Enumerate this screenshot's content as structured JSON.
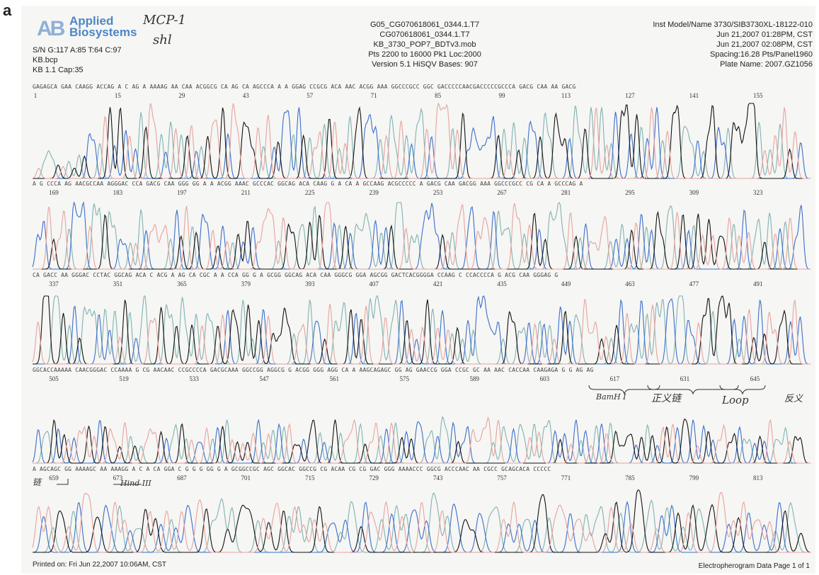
{
  "panel_label": "a",
  "logo": {
    "mark": "AB",
    "line1": "Applied",
    "line2": "Biosystems"
  },
  "handwritten": {
    "top1": "MCP-1",
    "top2": "shl"
  },
  "header": {
    "left": [
      "S/N G:117 A:85 T:64 C:97",
      "KB.bcp",
      "KB 1.1    Cap:35"
    ],
    "center": [
      "G05_CG070618061_0344.1.T7",
      "CG070618061_0344.1.T7",
      "KB_3730_POP7_BDTv3.mob",
      "Pts 2200 to 16000 Pk1 Loc:2000",
      "Version 5.1    HiSQV Bases: 907"
    ],
    "right": [
      "Inst Model/Name 3730/SIB3730XL-18122-010",
      "Jun 21,2007 01:28PM, CST",
      "Jun 21,2007 02:08PM, CST",
      "Spacing:16.28  Pts/Panel1960",
      "Plate Name: 2007.GZ1056"
    ]
  },
  "footer": {
    "left": "Printed on: Fri Jun 22,2007 10:06AM, CST",
    "right": "Electropherogram Data  Page 1 of 1"
  },
  "colors": {
    "A": "#3c8a3a",
    "C": "#3b6fcb",
    "G": "#111111",
    "T": "#e07a78"
  },
  "chart_data": {
    "type": "line",
    "title": "",
    "xlabel": "",
    "ylabel": "",
    "series": [
      {
        "name": "A",
        "color": "#7fb3b0"
      },
      {
        "name": "C",
        "color": "#3b6fcb"
      },
      {
        "name": "G",
        "color": "#111111"
      },
      {
        "name": "T",
        "color": "#e6a39e"
      }
    ],
    "panels": [
      {
        "sequence": "GAGAGCA GAA  CAAGG ACCAG A C  AG  A AAAAG AA CAA  ACGGCG CA  AG  CA AGCCCA A A GGAG  CCGCG  ACA AAC  ACGG AAA GGCCCGCC GGC GACCCCCAACGACCCCCGCCCA  GACG CAA AA GACG",
        "ticks": [
          "1",
          "15",
          "29",
          "43",
          "57",
          "71",
          "85",
          "99",
          "113",
          "127",
          "141",
          "155"
        ]
      },
      {
        "sequence": "A G  CCCA AG AACGCCAA AGGGAC   CCA  GACG CAA GGG GG A  A  ACGG AAAC GCCCAC  GGCAG ACA CAAG  G A CA A GCCAAG ACGCCCCC A  GACG CAA GACGG AAA GGCCCGCC  CG CA A  GCCCAG A",
        "ticks": [
          "169",
          "183",
          "197",
          "211",
          "225",
          "239",
          "253",
          "267",
          "281",
          "295",
          "309",
          "323"
        ]
      },
      {
        "sequence": "CA GACC AA GGGAC   CCTAC  GGCAG ACA C ACG A  AG  CA CGC A  A CCA GG G A GCGG   GGCAG ACA CAA  GGGCG GGA AGCGG  GACTCACGGGGA   CCAAG C CCACCCCA  G ACG CAA GGGAG  G",
        "ticks": [
          "337",
          "351",
          "365",
          "379",
          "393",
          "407",
          "421",
          "435",
          "449",
          "463",
          "477",
          "491"
        ]
      },
      {
        "sequence": "GGCACCAAAAA CAACGGGAC   CCAAAA G CG AACAAC CCGCCCCA  GACGCAAA GGCCGG AGGCG G ACGG GGG AGG CA A AAGCAGAGC GG    AG  GAACCG GGA CCGC GC AA AAC  CACCAA  CAAGAGA  G G AG AG",
        "ticks": [
          "505",
          "519",
          "533",
          "547",
          "561",
          "575",
          "589",
          "603",
          "617",
          "631",
          "645"
        ]
      },
      {
        "sequence": "A AGCAGC    GG AAAAGC  AA AAAGG A C      A   CA  GGA C G G G  GG    G  A GCGGCCGC AGC  GGCAC GGCCG CG    ACAA CG CG GAC GGG AAAACCC GGCG  ACCCAAC  AA CGCC  GCAGCACA CCCCC",
        "ticks": [
          "659",
          "673",
          "687",
          "701",
          "715",
          "729",
          "743",
          "757",
          "771",
          "785",
          "799",
          "813"
        ]
      }
    ]
  },
  "annotations": {
    "bamhi": "BamH I",
    "linker": "正义链",
    "loop": "Loop",
    "antisense": "反义",
    "antisense_end": "链",
    "hindiii": "Hind III"
  }
}
